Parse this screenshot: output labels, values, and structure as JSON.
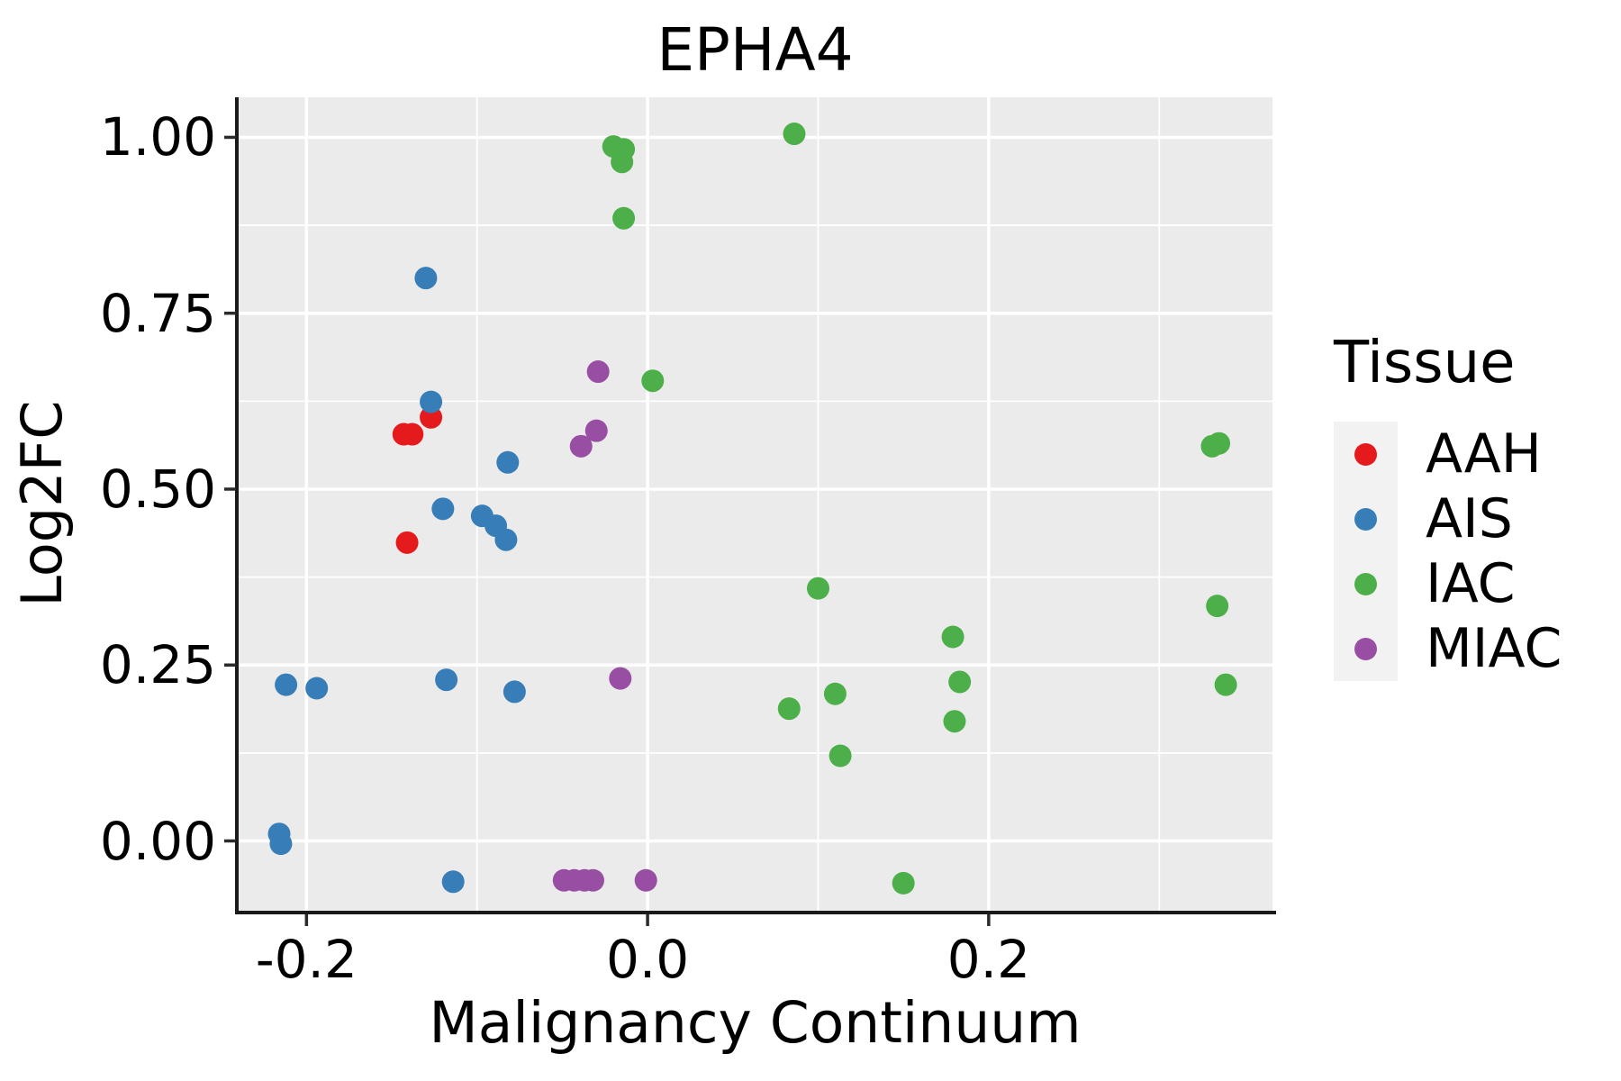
{
  "style": {
    "panel_bg": "#EBEBEB",
    "grid_color": "#FFFFFF",
    "axis_color": "#1a1a1a",
    "tick_color": "#2b2b2b",
    "legend_key_bg": "#F2F2F2",
    "text_color": "#000000",
    "background": "#FFFFFF"
  },
  "chart_data": {
    "type": "scatter",
    "title": "EPHA4",
    "xlabel": "Malignancy Continuum",
    "ylabel": "Log2FC",
    "legend_title": "Tissue",
    "legend_position": "right",
    "grid": true,
    "x_axis": {
      "range": [
        -0.2403,
        0.3664
      ],
      "ticks": [
        -0.2,
        0.0,
        0.2
      ],
      "tick_labels": [
        "-0.2",
        "0.0",
        "0.2"
      ],
      "minor_breaks": [
        -0.1,
        0.1,
        0.3
      ]
    },
    "y_axis": {
      "range": [
        -0.1005,
        1.0569
      ],
      "ticks": [
        0.0,
        0.25,
        0.5,
        0.75,
        1.0
      ],
      "tick_labels": [
        "0.00",
        "0.25",
        "0.50",
        "0.75",
        "1.00"
      ],
      "minor_breaks": [
        0.125,
        0.375,
        0.625,
        0.875
      ]
    },
    "series": [
      {
        "name": "AAH",
        "color": "#E41A1C",
        "points": [
          [
            -0.127,
            0.602
          ],
          [
            -0.143,
            0.578
          ],
          [
            -0.138,
            0.578
          ],
          [
            -0.141,
            0.424
          ]
        ]
      },
      {
        "name": "AIS",
        "color": "#377EB8",
        "points": [
          [
            -0.13,
            0.8
          ],
          [
            -0.127,
            0.624
          ],
          [
            -0.082,
            0.538
          ],
          [
            -0.12,
            0.472
          ],
          [
            -0.097,
            0.462
          ],
          [
            -0.089,
            0.448
          ],
          [
            -0.083,
            0.428
          ],
          [
            -0.212,
            0.222
          ],
          [
            -0.194,
            0.217
          ],
          [
            -0.118,
            0.229
          ],
          [
            -0.078,
            0.212
          ],
          [
            -0.216,
            0.01
          ],
          [
            -0.215,
            -0.004
          ],
          [
            -0.114,
            -0.058
          ]
        ]
      },
      {
        "name": "IAC",
        "color": "#4DAF4A",
        "points": [
          [
            -0.02,
            0.987
          ],
          [
            -0.014,
            0.983
          ],
          [
            -0.015,
            0.965
          ],
          [
            -0.014,
            0.885
          ],
          [
            0.086,
            1.005
          ],
          [
            0.003,
            0.654
          ],
          [
            0.1,
            0.359
          ],
          [
            0.179,
            0.29
          ],
          [
            0.183,
            0.226
          ],
          [
            0.11,
            0.209
          ],
          [
            0.083,
            0.188
          ],
          [
            0.18,
            0.17
          ],
          [
            0.113,
            0.121
          ],
          [
            0.331,
            0.561
          ],
          [
            0.335,
            0.565
          ],
          [
            0.334,
            0.334
          ],
          [
            0.339,
            0.222
          ],
          [
            0.15,
            -0.06
          ]
        ]
      },
      {
        "name": "MIAC",
        "color": "#984EA3",
        "points": [
          [
            -0.029,
            0.667
          ],
          [
            -0.03,
            0.583
          ],
          [
            -0.039,
            0.561
          ],
          [
            -0.016,
            0.231
          ],
          [
            -0.049,
            -0.056
          ],
          [
            -0.043,
            -0.056
          ],
          [
            -0.037,
            -0.056
          ],
          [
            -0.032,
            -0.056
          ],
          [
            -0.001,
            -0.056
          ]
        ]
      }
    ]
  }
}
